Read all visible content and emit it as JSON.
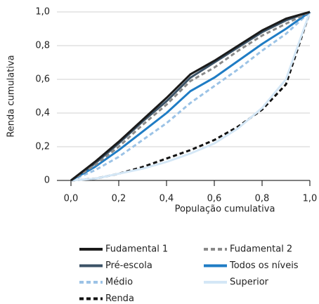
{
  "chart_data": {
    "type": "line",
    "xlabel": "População cumulativa",
    "ylabel": "Renda cumulativa",
    "x": [
      0,
      0.1,
      0.2,
      0.3,
      0.4,
      0.5,
      0.6,
      0.7,
      0.8,
      0.9,
      1
    ],
    "series": [
      {
        "name": "Fudamental 1",
        "color": "#1b1b1b",
        "dash": false,
        "values": [
          0,
          0.11,
          0.23,
          0.36,
          0.49,
          0.63,
          0.71,
          0.8,
          0.89,
          0.96,
          1
        ]
      },
      {
        "name": "Fudamental 2",
        "color": "#8a8a8a",
        "dash": true,
        "values": [
          0,
          0.09,
          0.2,
          0.33,
          0.45,
          0.59,
          0.67,
          0.77,
          0.86,
          0.93,
          1
        ]
      },
      {
        "name": "Pré-escola",
        "color": "#3b5266",
        "dash": false,
        "values": [
          0,
          0.1,
          0.22,
          0.35,
          0.47,
          0.61,
          0.7,
          0.79,
          0.88,
          0.95,
          1
        ]
      },
      {
        "name": "Todos os níveis",
        "color": "#1f7cc4",
        "dash": false,
        "values": [
          0,
          0.08,
          0.18,
          0.29,
          0.4,
          0.53,
          0.61,
          0.71,
          0.81,
          0.9,
          1
        ]
      },
      {
        "name": "Médio",
        "color": "#9cc3e6",
        "dash": true,
        "values": [
          0,
          0.06,
          0.14,
          0.24,
          0.34,
          0.46,
          0.56,
          0.66,
          0.77,
          0.87,
          1
        ]
      },
      {
        "name": "Superior",
        "color": "#d4e7f6",
        "dash": false,
        "values": [
          0,
          0.01,
          0.04,
          0.07,
          0.11,
          0.16,
          0.22,
          0.31,
          0.43,
          0.6,
          1
        ]
      },
      {
        "name": "Renda",
        "color": "#111111",
        "dash": true,
        "values": [
          0,
          0.01,
          0.04,
          0.08,
          0.13,
          0.18,
          0.24,
          0.32,
          0.42,
          0.57,
          1
        ]
      }
    ],
    "xlim": [
      0,
      1
    ],
    "ylim": [
      0,
      1
    ],
    "xticks": [
      {
        "value": 0,
        "label": "0,0"
      },
      {
        "value": 0.2,
        "label": "0,2"
      },
      {
        "value": 0.4,
        "label": "0,4"
      },
      {
        "value": 0.6,
        "label": "0,6"
      },
      {
        "value": 0.8,
        "label": "0,8"
      },
      {
        "value": 1,
        "label": "1,0"
      }
    ],
    "yticks": [
      0,
      {
        "value": 0.2,
        "label": "0,2"
      },
      {
        "value": 0.4,
        "label": "0,4"
      },
      {
        "value": 0.6,
        "label": "0,6"
      },
      {
        "value": 0.8,
        "label": "0,8"
      },
      {
        "value": 1,
        "label": "1,0"
      }
    ],
    "grid": true,
    "legend": "bottom"
  }
}
